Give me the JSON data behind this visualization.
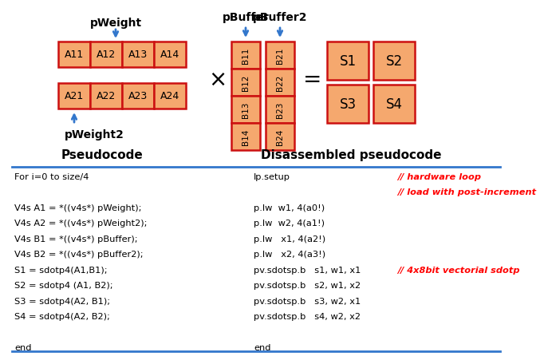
{
  "bg_color": "#ffffff",
  "box_fill": "#f5a86e",
  "box_edge": "#cc1111",
  "arrow_color": "#3377cc",
  "divider_color": "#3377cc",
  "title_pseudocode": "Pseudocode",
  "title_disassembled": "Disassembled pseudocode",
  "pseudocode_lines": [
    "For i=0 to size/4",
    "",
    "V4s A1 = *((v4s*) pWeight);",
    "V4s A2 = *((v4s*) pWeight2);",
    "V4s B1 = *((v4s*) pBuffer);",
    "V4s B2 = *((v4s*) pBuffer2);",
    "S1 = sdotp4(A1,B1);",
    "S2 = sdotp4 (A1, B2);",
    "S3 = sdotp4(A2, B1);",
    "S4 = sdotp4(A2, B2);",
    "",
    "end"
  ],
  "asm_lines": [
    "lp.setup",
    "",
    "p.lw  w1, 4(a0!)",
    "p.lw  w2, 4(a1!)",
    "p.lw   x1, 4(a2!)",
    "p.lw   x2, 4(a3!)",
    "pv.sdotsp.b   s1, w1, x1",
    "pv.sdotsp.b   s2, w1, x2",
    "pv.sdotsp.b   s3, w2, x1",
    "pv.sdotsp.b   s4, w2, x2",
    "",
    "end"
  ],
  "comment_indices": [
    0,
    1,
    6
  ],
  "comment_texts": [
    "// hardware loop",
    "// load with post-increment",
    "// 4x8bit vectorial sdotp"
  ],
  "matrix_A_row1": [
    "A11",
    "A12",
    "A13",
    "A14"
  ],
  "matrix_A_row2": [
    "A21",
    "A22",
    "A23",
    "A24"
  ],
  "matrix_B_col1": [
    "B11",
    "B12",
    "B13",
    "B14"
  ],
  "matrix_B_col2": [
    "B21",
    "B22",
    "B23",
    "B24"
  ],
  "matrix_S": [
    "S1",
    "S2",
    "S3",
    "S4"
  ],
  "label_pWeight": "pWeight",
  "label_pWeight2": "pWeight2",
  "label_pBuffer": "pBuffer",
  "label_pBuffer2": "pBuffer2"
}
